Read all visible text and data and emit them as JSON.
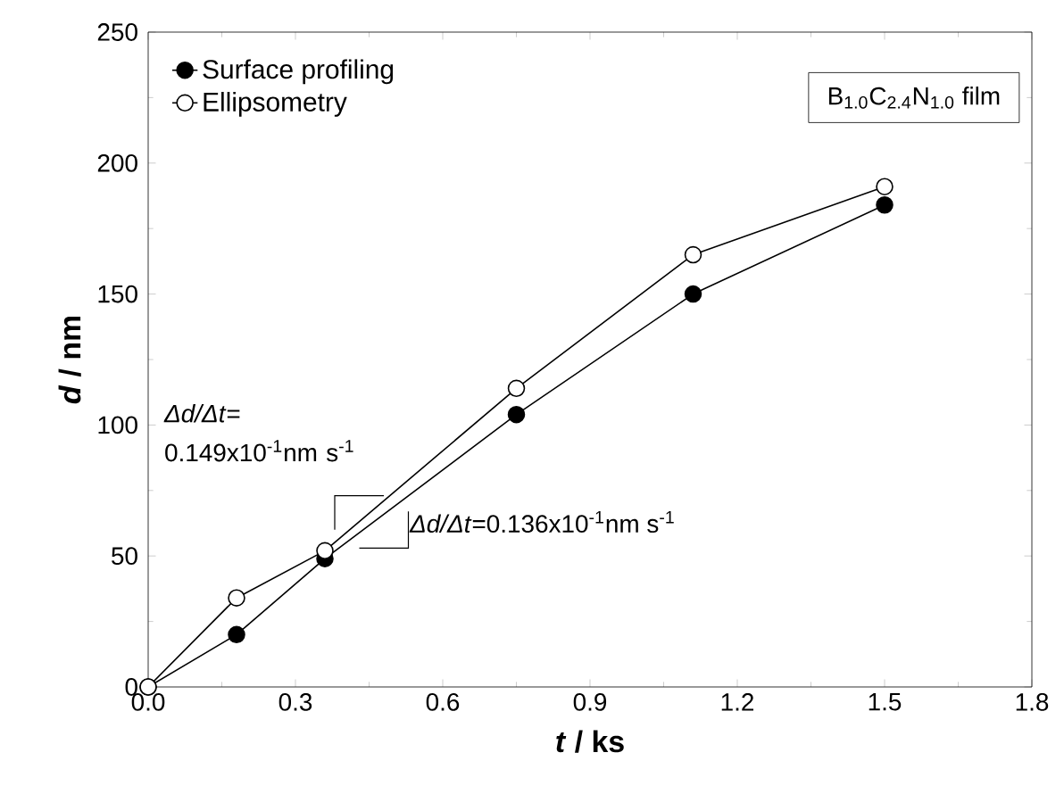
{
  "chart_data": {
    "type": "line",
    "xlabel": "*t* / ks",
    "ylabel": "*d* / nm",
    "x": [
      0,
      0.18,
      0.36,
      0.75,
      1.11,
      1.5
    ],
    "series": [
      {
        "name": "Surface profiling",
        "color": "#000000",
        "values": [
          0,
          20,
          49,
          104,
          150,
          184
        ]
      },
      {
        "name": "Ellipsometry",
        "color": "#ffffff",
        "values": [
          0,
          34,
          52,
          114,
          165,
          191
        ]
      }
    ],
    "xlim": [
      0,
      1.8
    ],
    "ylim": [
      0,
      250
    ],
    "xticks": [
      {
        "value": 0,
        "label": "0.0"
      },
      {
        "value": 0.3,
        "label": "0.3"
      },
      {
        "value": 0.6,
        "label": "0.6"
      },
      {
        "value": 0.9,
        "label": "0.9"
      },
      {
        "value": 1.2,
        "label": "1.2"
      },
      {
        "value": 1.5,
        "label": "1.5"
      },
      {
        "value": 1.8,
        "label": "1.8"
      }
    ],
    "yticks": [
      0,
      50,
      100,
      150,
      200,
      250
    ],
    "grid": false,
    "legend": "top left",
    "marker": "circle",
    "line_style": "solid",
    "annotations": [
      "B$_{1.0}$C$_{2.4}$N$_{1.0}$ film",
      "*Δd/Δt*= 0.149x10$^{-1}$nm s$^{-1}$",
      "*Δd/Δt*=0.136x10$^{-1}$nm s$^{-1}$"
    ]
  }
}
